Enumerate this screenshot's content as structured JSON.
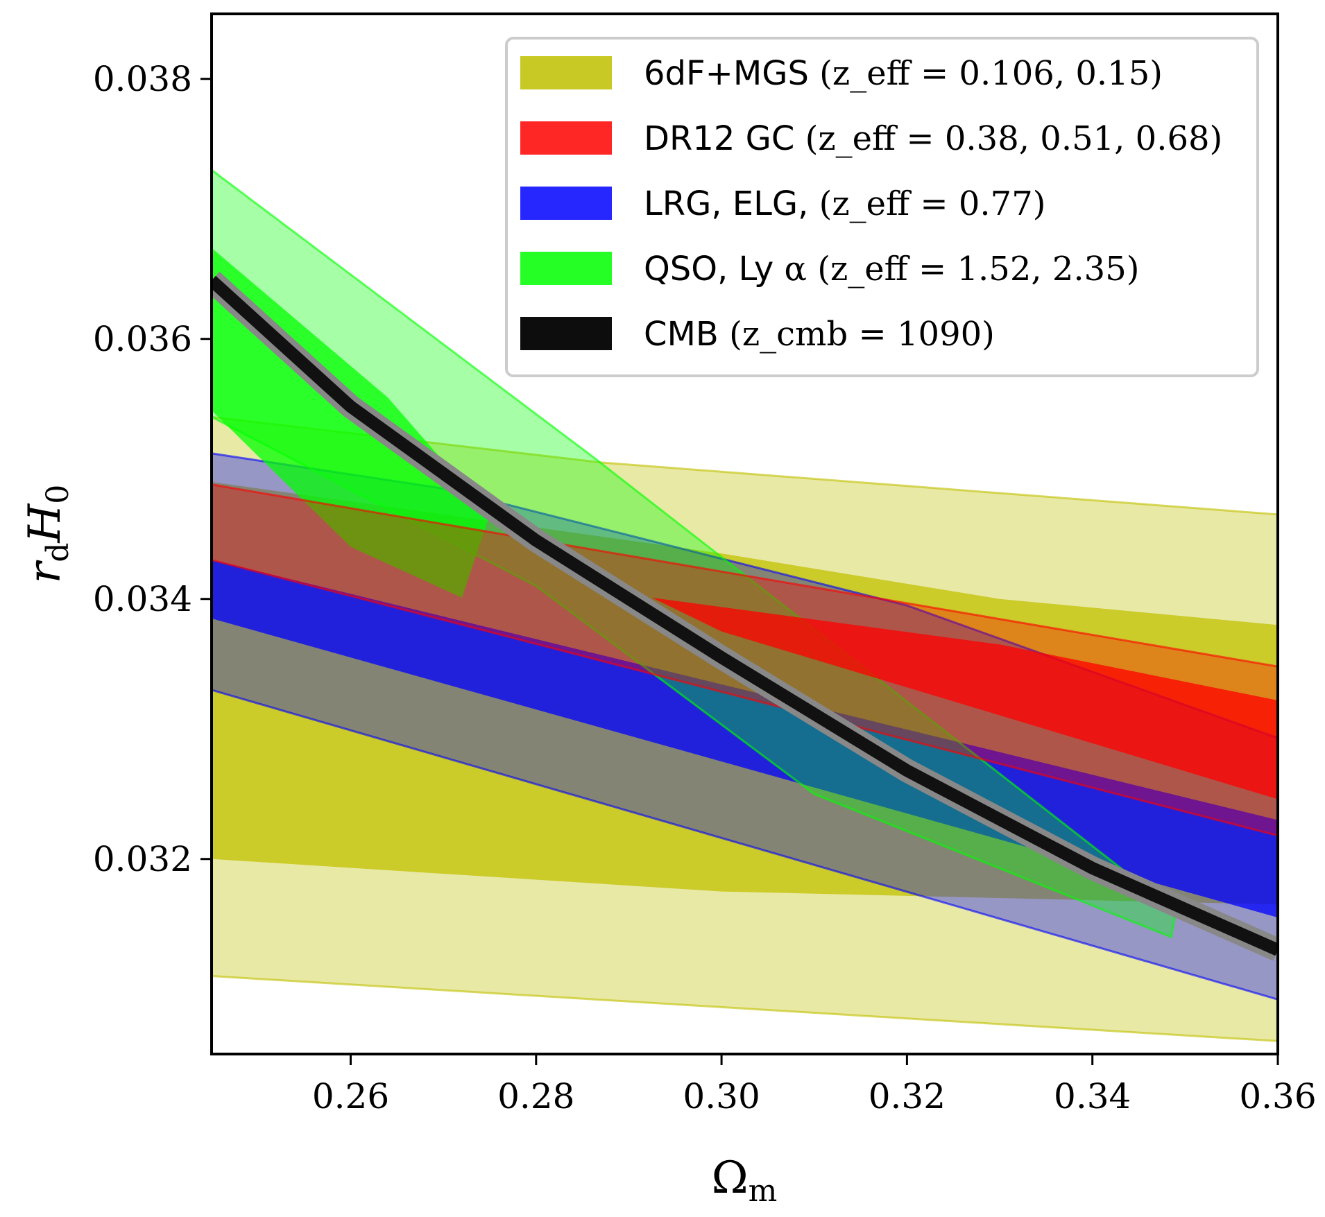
{
  "chart_data": {
    "type": "contour",
    "title": "",
    "xlabel": "Ωm",
    "ylabel": "rdH0",
    "xlim": [
      0.245,
      0.36
    ],
    "ylim": [
      0.0305,
      0.0385
    ],
    "x_ticks": [
      0.26,
      0.28,
      0.3,
      0.32,
      0.34,
      0.36
    ],
    "x_tick_labels": [
      "0.26",
      "0.28",
      "0.30",
      "0.32",
      "0.34",
      "0.36"
    ],
    "y_ticks": [
      0.032,
      0.034,
      0.036,
      0.038
    ],
    "y_tick_labels": [
      "0.032",
      "0.034",
      "0.036",
      "0.038"
    ],
    "legend_position": "top-right",
    "series": [
      {
        "name": "6dF+MGS",
        "legend_label": "6dF+MGS",
        "legend_math": "(z_eff = 0.106, 0.15)",
        "color": "#c0c000",
        "regions": {
          "outer_2sigma": [
            [
              0.245,
              0.0311
            ],
            [
              0.36,
              0.0306
            ],
            [
              0.36,
              0.03465
            ],
            [
              0.287,
              0.03505
            ],
            [
              0.245,
              0.0354
            ]
          ],
          "inner_1sigma": [
            [
              0.245,
              0.032
            ],
            [
              0.3,
              0.03175
            ],
            [
              0.36,
              0.03165
            ],
            [
              0.36,
              0.0338
            ],
            [
              0.33,
              0.034
            ],
            [
              0.3,
              0.03435
            ],
            [
              0.245,
              0.0349
            ]
          ]
        }
      },
      {
        "name": "DR12 GC",
        "legend_label": "DR12 GC",
        "legend_math": "(z_eff = 0.38, 0.51, 0.68)",
        "color": "#ff0000",
        "regions": {
          "outer_2sigma": [
            [
              0.245,
              0.0343
            ],
            [
              0.36,
              0.03218
            ],
            [
              0.36,
              0.03348
            ],
            [
              0.245,
              0.03488
            ]
          ],
          "inner_1sigma": [
            [
              0.2925,
              0.03401
            ],
            [
              0.33,
              0.03365
            ],
            [
              0.36,
              0.03322
            ],
            [
              0.36,
              0.03246
            ],
            [
              0.3,
              0.03375
            ],
            [
              0.2925,
              0.03401
            ]
          ]
        }
      },
      {
        "name": "LRG, ELG,",
        "legend_label": "LRG, ELG,",
        "legend_math": "(z_eff = 0.77)",
        "color": "#0000ff",
        "regions": {
          "outer_2sigma": [
            [
              0.245,
              0.0333
            ],
            [
              0.36,
              0.03092
            ],
            [
              0.36,
              0.03293
            ],
            [
              0.32,
              0.03395
            ],
            [
              0.27,
              0.03485
            ],
            [
              0.245,
              0.03512
            ]
          ],
          "inner_1sigma": [
            [
              0.245,
              0.03385
            ],
            [
              0.36,
              0.03155
            ],
            [
              0.36,
              0.0323
            ],
            [
              0.245,
              0.0343
            ]
          ]
        }
      },
      {
        "name": "QSO, Lyα",
        "legend_label": "QSO, Ly",
        "legend_math": "α (z_eff = 1.52, 2.35)",
        "color": "#00ff00",
        "regions": {
          "outer_2sigma": [
            [
              0.245,
              0.0373
            ],
            [
              0.286,
              0.0351
            ],
            [
              0.349,
              0.0316
            ],
            [
              0.3485,
              0.0314
            ],
            [
              0.31,
              0.0325
            ],
            [
              0.28,
              0.0341
            ],
            [
              0.245,
              0.0354
            ]
          ],
          "inner_1sigma": [
            [
              0.245,
              0.0367
            ],
            [
              0.264,
              0.03555
            ],
            [
              0.275,
              0.03465
            ],
            [
              0.272,
              0.03401
            ],
            [
              0.26,
              0.0344
            ],
            [
              0.245,
              0.03545
            ]
          ]
        }
      },
      {
        "name": "CMB",
        "legend_label": "CMB",
        "legend_math": "(z_cmb = 1090)",
        "color": "#000000",
        "regions": {
          "band_center": [
            [
              0.245,
              0.03645
            ],
            [
              0.26,
              0.03548
            ],
            [
              0.28,
              0.03445
            ],
            [
              0.3,
              0.03355
            ],
            [
              0.32,
              0.03268
            ],
            [
              0.34,
              0.03193
            ],
            [
              0.36,
              0.0313
            ]
          ]
        }
      }
    ]
  }
}
